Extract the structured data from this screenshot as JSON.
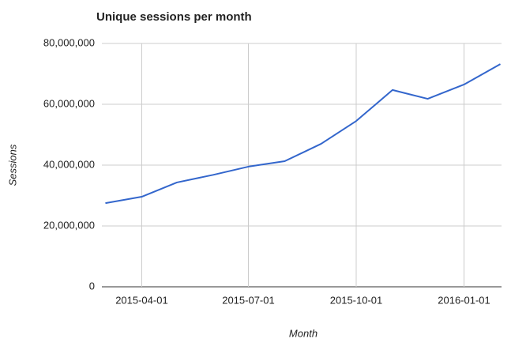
{
  "chart_data": {
    "type": "line",
    "title": "Unique sessions per month",
    "x_label": "Month",
    "y_label": "Sessions",
    "x": [
      "2015-03-01",
      "2015-04-01",
      "2015-05-01",
      "2015-06-01",
      "2015-07-01",
      "2015-08-01",
      "2015-09-01",
      "2015-10-01",
      "2015-11-01",
      "2015-12-01",
      "2016-01-01",
      "2016-02-01"
    ],
    "series": [
      {
        "name": "Sessions",
        "color": "#3366cc",
        "values": [
          27500000,
          29600000,
          34300000,
          36800000,
          39500000,
          41300000,
          47000000,
          54500000,
          64700000,
          61800000,
          66500000,
          73200000
        ]
      }
    ],
    "xlim": [
      "2015-02-26",
      "2016-02-02"
    ],
    "xticks": [
      "2015-04-01",
      "2015-07-01",
      "2015-10-01",
      "2016-01-01"
    ],
    "ylim": [
      0,
      80000000
    ],
    "yticks": [
      0,
      {
        "value": 20000000,
        "label": "20,000,000"
      },
      {
        "value": 40000000,
        "label": "40,000,000"
      },
      {
        "value": 60000000,
        "label": "60,000,000"
      },
      {
        "value": 80000000,
        "label": "80,000,000"
      }
    ],
    "grid": true
  }
}
